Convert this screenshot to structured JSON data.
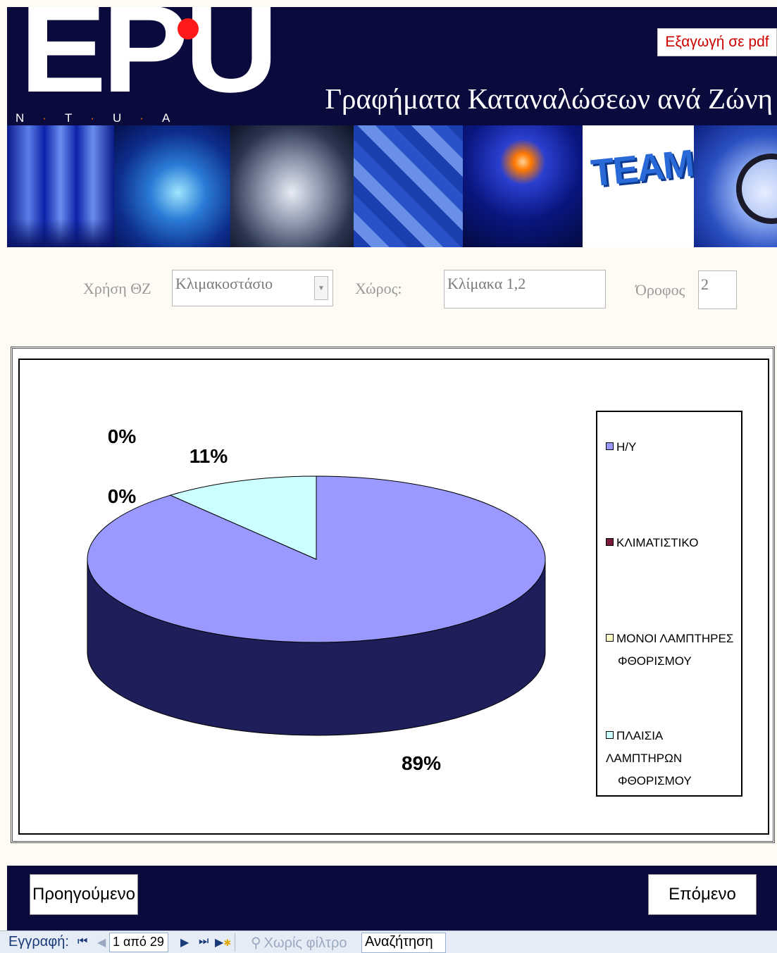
{
  "header": {
    "logo_text": "EPU",
    "logo_letters": [
      "N",
      "T",
      "U",
      "A"
    ],
    "export_pdf_label": "Εξαγωγή σε pdf",
    "title": "Γραφήματα Καταναλώσεων ανά Ζώνη"
  },
  "banner": {
    "team_text": "TEAM"
  },
  "filters": {
    "usage_label": "Χρήση ΘΖ",
    "usage_value": "Κλιμακοστάσιο",
    "room_label": "Χώρος:",
    "room_value": "Κλίμακα 1,2",
    "floor_label": "Όροφος",
    "floor_value": "2"
  },
  "chart_data": {
    "type": "pie",
    "style": "3d",
    "categories": [
      "Η/Υ",
      "ΚΛΙΜΑΤΙΣΤΙΚΟ",
      "ΜΟΝΟΙ ΛΑΜΠΤΗΡΕΣ ΦΘΟΡΙΣΜΟΥ",
      "ΠΛΑΙΣΙΑ ΛΑΜΠΤΗΡΩΝ ΦΘΟΡΙΣΜΟΥ"
    ],
    "values": [
      89,
      0,
      0,
      11
    ],
    "data_labels": [
      "89%",
      "0%",
      "0%",
      "11%"
    ],
    "colors": [
      "#9999ff",
      "#7a1a3a",
      "#ffffcc",
      "#ccffff"
    ],
    "legend_lines": [
      [
        "Η/Υ"
      ],
      [
        "ΚΛΙΜΑΤΙΣΤΙΚΟ"
      ],
      [
        "ΜΟΝΟΙ ΛΑΜΠΤΗΡΕΣ",
        "ΦΘΟΡΙΣΜΟΥ"
      ],
      [
        "ΠΛΑΙΣΙΑ ΛΑΜΠΤΗΡΩΝ",
        "ΦΘΟΡΙΣΜΟΥ"
      ]
    ],
    "legend_position": "right"
  },
  "navigation": {
    "prev_label": "Προηγούμενο",
    "next_label": "Επόμενο"
  },
  "record_nav": {
    "label": "Εγγραφή:",
    "position": "1 από 29",
    "filter_status": "Χωρίς φίλτρο",
    "search_value": "Αναζήτηση"
  },
  "colors": {
    "header_bg": "#0a0a3c",
    "page_bg": "#fdfbf3",
    "logo_dot": "#ff1a1a",
    "pdf_text": "#cc0000",
    "pie_side": "#1e1e5a"
  }
}
